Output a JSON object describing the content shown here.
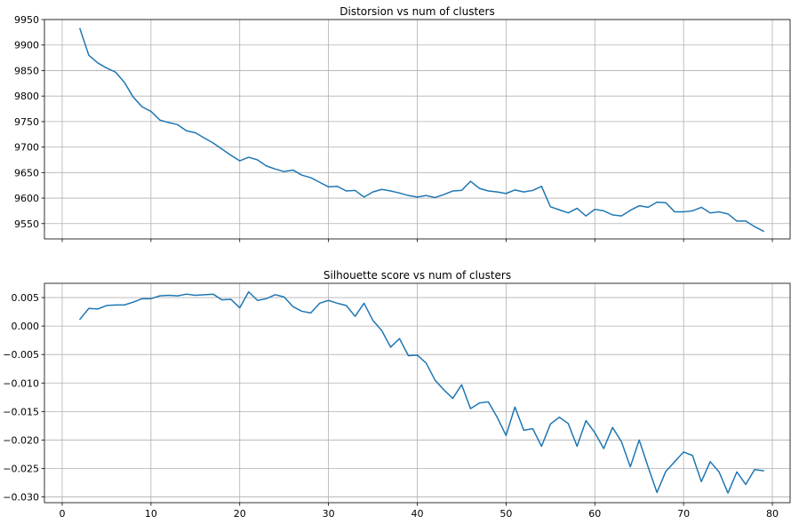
{
  "chart_data": [
    {
      "type": "line",
      "title": "Distorsion vs num of clusters",
      "xlabel": "",
      "ylabel": "",
      "xlim": [
        -2,
        82
      ],
      "ylim": [
        9520,
        9950
      ],
      "xticks": [
        0,
        10,
        20,
        30,
        40,
        50,
        60,
        70,
        80
      ],
      "xtick_labels_visible": false,
      "yticks": [
        9550,
        9600,
        9650,
        9700,
        9750,
        9800,
        9850,
        9900,
        9950
      ],
      "grid": true,
      "color": "#1f77b4",
      "x": [
        2,
        3,
        4,
        5,
        6,
        7,
        8,
        9,
        10,
        11,
        12,
        13,
        14,
        15,
        16,
        17,
        18,
        19,
        20,
        21,
        22,
        23,
        24,
        25,
        26,
        27,
        28,
        29,
        30,
        31,
        32,
        33,
        34,
        35,
        36,
        37,
        38,
        39,
        40,
        41,
        42,
        43,
        44,
        45,
        46,
        47,
        48,
        49,
        50,
        51,
        52,
        53,
        54,
        55,
        56,
        57,
        58,
        59,
        60,
        61,
        62,
        63,
        64,
        65,
        66,
        67,
        68,
        69,
        70,
        71,
        72,
        73,
        74,
        75,
        76,
        77,
        78,
        79
      ],
      "series": [
        {
          "values": [
            9932,
            9880,
            9865,
            9855,
            9847,
            9827,
            9798,
            9779,
            9770,
            9753,
            9748,
            9744,
            9732,
            9728,
            9718,
            9708,
            9696,
            9684,
            9673,
            9680,
            9675,
            9663,
            9657,
            9652,
            9655,
            9645,
            9640,
            9631,
            9622,
            9623,
            9614,
            9615,
            9602,
            9612,
            9617,
            9614,
            9610,
            9605,
            9602,
            9605,
            9601,
            9607,
            9614,
            9615,
            9633,
            9619,
            9614,
            9612,
            9609,
            9616,
            9612,
            9615,
            9623,
            9583,
            9577,
            9571,
            9580,
            9565,
            9578,
            9575,
            9567,
            9565,
            9576,
            9585,
            9582,
            9592,
            9591,
            9573,
            9573,
            9575,
            9582,
            9571,
            9573,
            9569,
            9555,
            9555,
            9544,
            9535
          ]
        }
      ]
    },
    {
      "type": "line",
      "title": "Silhouette score vs num of clusters",
      "xlabel": "",
      "ylabel": "",
      "xlim": [
        -2,
        82
      ],
      "ylim": [
        -0.031,
        0.0075
      ],
      "xticks": [
        0,
        10,
        20,
        30,
        40,
        50,
        60,
        70,
        80
      ],
      "xtick_labels": [
        "0",
        "10",
        "20",
        "30",
        "40",
        "50",
        "60",
        "70",
        "80"
      ],
      "yticks": [
        -0.03,
        -0.025,
        -0.02,
        -0.015,
        -0.01,
        -0.005,
        0.0,
        0.005
      ],
      "ytick_labels": [
        "−0.030",
        "−0.025",
        "−0.020",
        "−0.015",
        "−0.010",
        "−0.005",
        "0.000",
        "0.005"
      ],
      "grid": true,
      "color": "#1f77b4",
      "x": [
        2,
        3,
        4,
        5,
        6,
        7,
        8,
        9,
        10,
        11,
        12,
        13,
        14,
        15,
        16,
        17,
        18,
        19,
        20,
        21,
        22,
        23,
        24,
        25,
        26,
        27,
        28,
        29,
        30,
        31,
        32,
        33,
        34,
        35,
        36,
        37,
        38,
        39,
        40,
        41,
        42,
        43,
        44,
        45,
        46,
        47,
        48,
        49,
        50,
        51,
        52,
        53,
        54,
        55,
        56,
        57,
        58,
        59,
        60,
        61,
        62,
        63,
        64,
        65,
        66,
        67,
        68,
        69,
        70,
        71,
        72,
        73,
        74,
        75,
        76,
        77,
        78,
        79
      ],
      "series": [
        {
          "values": [
            0.0012,
            0.0031,
            0.003,
            0.0036,
            0.0037,
            0.0037,
            0.0042,
            0.0048,
            0.0048,
            0.0053,
            0.0054,
            0.0053,
            0.0056,
            0.0054,
            0.0055,
            0.0056,
            0.0046,
            0.0047,
            0.0032,
            0.006,
            0.0045,
            0.0048,
            0.0055,
            0.0051,
            0.0034,
            0.0026,
            0.0023,
            0.004,
            0.0045,
            0.004,
            0.0036,
            0.0017,
            0.004,
            0.001,
            -0.0008,
            -0.0037,
            -0.0022,
            -0.0052,
            -0.0051,
            -0.0065,
            -0.0095,
            -0.0112,
            -0.0127,
            -0.0103,
            -0.0145,
            -0.0135,
            -0.0133,
            -0.016,
            -0.0192,
            -0.0142,
            -0.0183,
            -0.018,
            -0.0211,
            -0.0172,
            -0.016,
            -0.0171,
            -0.0211,
            -0.0166,
            -0.0187,
            -0.0215,
            -0.0178,
            -0.0203,
            -0.0247,
            -0.02,
            -0.0247,
            -0.0292,
            -0.0255,
            -0.0238,
            -0.0221,
            -0.0227,
            -0.0273,
            -0.0238,
            -0.0256,
            -0.0293,
            -0.0256,
            -0.0278,
            -0.0252,
            -0.0254
          ]
        }
      ]
    }
  ]
}
